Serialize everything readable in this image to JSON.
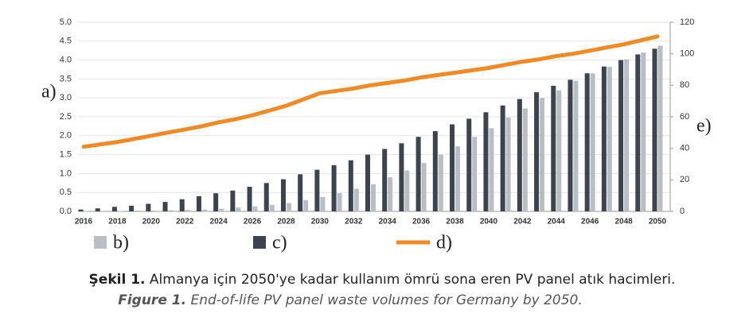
{
  "chart_data": {
    "type": "bar",
    "y_axis_label": "a)",
    "y2_axis_label": "e)",
    "categories": [
      "2016",
      null,
      "2018",
      null,
      "2020",
      null,
      "2022",
      null,
      "2024",
      null,
      "2026",
      null,
      "2028",
      null,
      "2030",
      null,
      "2032",
      null,
      "2034",
      null,
      "2036",
      null,
      "2038",
      null,
      "2040",
      null,
      "2042",
      null,
      "2044",
      null,
      "2046",
      null,
      "2048",
      null,
      "2050"
    ],
    "series": [
      {
        "name": "b)",
        "color": "#b9bec4",
        "values": [
          0.01,
          0.01,
          0.01,
          0.02,
          0.02,
          0.03,
          0.04,
          0.05,
          0.07,
          0.1,
          0.13,
          0.17,
          0.22,
          0.3,
          0.38,
          0.48,
          0.6,
          0.72,
          0.9,
          1.08,
          1.28,
          1.5,
          1.72,
          1.97,
          2.2,
          2.48,
          2.72,
          3.0,
          3.2,
          3.45,
          3.65,
          3.82,
          4.02,
          4.2,
          4.38
        ]
      },
      {
        "name": "c)",
        "color": "#3d4450",
        "values": [
          0.05,
          0.08,
          0.12,
          0.15,
          0.2,
          0.25,
          0.32,
          0.4,
          0.48,
          0.55,
          0.65,
          0.75,
          0.85,
          0.98,
          1.1,
          1.22,
          1.35,
          1.5,
          1.65,
          1.8,
          1.97,
          2.12,
          2.3,
          2.45,
          2.62,
          2.8,
          2.97,
          3.15,
          3.32,
          3.48,
          3.65,
          3.83,
          4.0,
          4.15,
          4.3
        ]
      },
      {
        "name": "d)",
        "type": "line",
        "axis": "y2",
        "color": "#f08a24",
        "values": [
          41,
          42.5,
          44,
          46,
          48,
          50,
          52,
          54,
          56.5,
          58.5,
          61,
          64,
          67,
          71,
          75,
          76.5,
          78,
          80,
          81.5,
          83,
          85,
          86.5,
          88,
          89.5,
          91,
          93,
          95,
          96.5,
          98.5,
          100,
          102,
          104,
          106,
          108.5,
          111
        ]
      }
    ],
    "ylim": [
      0,
      5
    ],
    "yticks": [
      {
        "value": 0,
        "label": "0.0"
      },
      {
        "value": 0.5,
        "label": "0.5"
      },
      {
        "value": 1,
        "label": "1.0"
      },
      {
        "value": 1.5,
        "label": "1.5"
      },
      {
        "value": 2,
        "label": "2.0"
      },
      {
        "value": 2.5,
        "label": "2.5"
      },
      {
        "value": 3,
        "label": "3.0"
      },
      {
        "value": 3.5,
        "label": "3.5"
      },
      {
        "value": 4,
        "label": "4.0"
      },
      {
        "value": 4.5,
        "label": "4.5"
      },
      {
        "value": 5,
        "label": "5.0"
      }
    ],
    "y2lim": [
      0,
      120
    ],
    "y2ticks": [
      0,
      20,
      40,
      60,
      80,
      100,
      120
    ],
    "grid": true,
    "caption_tr_label": "Şekil 1.",
    "caption_tr_text": "Almanya için 2050'ye kadar kullanım ömrü sona eren PV panel atık hacimleri.",
    "caption_en_label": "Figure 1.",
    "caption_en_text": "End-of-life PV panel waste volumes for Germany by 2050."
  }
}
